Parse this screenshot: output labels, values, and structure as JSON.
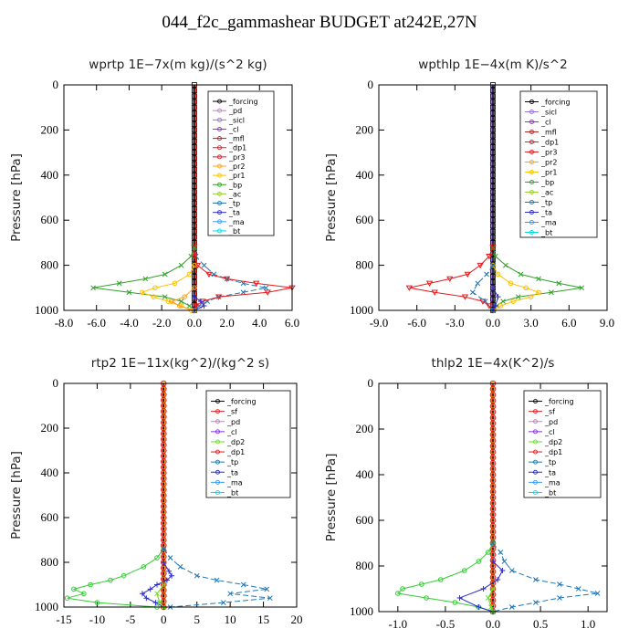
{
  "figure_title": "044_f2c_gammashear  BUDGET at242E,27N",
  "chart_data": [
    {
      "type": "line",
      "title": "wprtp  1E−7x(m kg)/(s^2 kg)",
      "ylabel": "Pressure [hPa]",
      "xlim": [
        -8,
        6
      ],
      "ylim": [
        1000,
        0
      ],
      "xticks": [
        "-8.0",
        "-6.0",
        "-4.0",
        "-2.0",
        "0.0",
        "2.0",
        "4.0",
        "6.0"
      ],
      "xtick_values": [
        -8,
        -6,
        -4,
        -2,
        0,
        2,
        4,
        6
      ],
      "yticks": [
        "0",
        "200",
        "400",
        "600",
        "800",
        "1000"
      ],
      "ytick_values": [
        0,
        200,
        400,
        600,
        800,
        1000
      ],
      "legend": [
        "_forcing",
        "_pd",
        "_sicl",
        "_cl",
        "_mfl",
        "_dp1",
        "_pr3",
        "_pr2",
        "_pr1",
        "_bp",
        "_ac",
        "_tp",
        "_ta",
        "_ma",
        "_bt"
      ],
      "series": [
        {
          "name": "_tp",
          "color": "#1f77b4",
          "marker": "x",
          "dash": "6,3",
          "y": [
            720,
            760,
            800,
            840,
            860,
            880,
            900,
            920,
            940,
            960,
            980,
            1000
          ],
          "x": [
            0,
            0.1,
            0.6,
            1.2,
            2.0,
            3.0,
            4.4,
            3.0,
            1.5,
            0.8,
            0.3,
            0
          ]
        },
        {
          "name": "_pr3",
          "color": "#e41a1c",
          "marker": "tri",
          "dash": "",
          "y": [
            720,
            760,
            800,
            840,
            860,
            880,
            900,
            920,
            940,
            960,
            980,
            1000
          ],
          "x": [
            0,
            0,
            0.2,
            0.9,
            2.0,
            3.8,
            6.0,
            4.5,
            1.5,
            0.5,
            0.1,
            0
          ]
        },
        {
          "name": "_bp",
          "color": "#33a02c",
          "marker": "x",
          "dash": "",
          "y": [
            720,
            760,
            800,
            840,
            860,
            880,
            900,
            920,
            940,
            960,
            980,
            1000
          ],
          "x": [
            0,
            -0.2,
            -0.8,
            -1.8,
            -3.0,
            -4.6,
            -6.2,
            -4.0,
            -1.8,
            -0.8,
            -0.3,
            0
          ]
        },
        {
          "name": "_pr1",
          "color": "#ffc000",
          "marker": "o",
          "dash": "",
          "y": [
            800,
            840,
            880,
            900,
            920,
            940,
            960,
            980,
            1000
          ],
          "x": [
            0,
            -0.3,
            -1.2,
            -2.4,
            -3.2,
            -2.5,
            -1.6,
            -0.8,
            -0.2
          ]
        },
        {
          "name": "_pr2",
          "color": "#ff9f1c",
          "marker": "o",
          "dash": "",
          "y": [
            900,
            940,
            960,
            980,
            1000
          ],
          "x": [
            0,
            -0.6,
            -1.4,
            -0.9,
            0
          ]
        },
        {
          "name": "_ta",
          "color": "#2b2bd1",
          "marker": "+",
          "dash": "",
          "y": [
            940,
            960,
            980,
            1000
          ],
          "x": [
            0,
            0.4,
            0.6,
            0
          ]
        }
      ]
    },
    {
      "type": "line",
      "title": "wpthlp  1E−4x(m K)/s^2",
      "ylabel": "Pressure [hPa]",
      "xlim": [
        -9,
        9
      ],
      "ylim": [
        1000,
        0
      ],
      "xticks": [
        "-9.0",
        "-6.0",
        "-3.0",
        "0.0",
        "3.0",
        "6.0",
        "9.0"
      ],
      "xtick_values": [
        -9,
        -6,
        -3,
        0,
        3,
        6,
        9
      ],
      "yticks": [
        "0",
        "200",
        "400",
        "600",
        "800",
        "1000"
      ],
      "ytick_values": [
        0,
        200,
        400,
        600,
        800,
        1000
      ],
      "legend": [
        "_forcing",
        "_sicl",
        "_cl",
        "_mfl",
        "_dp1",
        "_pr3",
        "_pr2",
        "_pr1",
        "_bp",
        "_ac",
        "_tp",
        "_ta",
        "_ma",
        "_bt"
      ],
      "series": [
        {
          "name": "_bp",
          "color": "#33a02c",
          "marker": "x",
          "dash": "",
          "y": [
            720,
            760,
            800,
            840,
            860,
            880,
            900,
            920,
            940,
            960,
            980,
            1000
          ],
          "x": [
            0,
            0.2,
            1.0,
            2.2,
            3.6,
            5.2,
            7.0,
            4.6,
            2.0,
            0.8,
            0.3,
            0
          ]
        },
        {
          "name": "_pr3",
          "color": "#e41a1c",
          "marker": "tri",
          "dash": "",
          "y": [
            720,
            760,
            800,
            840,
            860,
            880,
            900,
            920,
            940,
            960,
            980,
            1000
          ],
          "x": [
            0,
            -0.3,
            -1.0,
            -2.0,
            -3.4,
            -5.0,
            -6.6,
            -4.6,
            -2.2,
            -0.8,
            -0.3,
            0
          ]
        },
        {
          "name": "_pr1",
          "color": "#ffc000",
          "marker": "o",
          "dash": "",
          "y": [
            800,
            840,
            880,
            900,
            920,
            940,
            960,
            980,
            1000
          ],
          "x": [
            0,
            0.4,
            1.4,
            2.6,
            3.6,
            3.0,
            1.6,
            0.6,
            0.1
          ]
        },
        {
          "name": "_tp",
          "color": "#1f77b4",
          "marker": "x",
          "dash": "6,3",
          "y": [
            800,
            840,
            880,
            920,
            960,
            1000
          ],
          "x": [
            0,
            -0.5,
            -1.2,
            -1.6,
            -0.6,
            0
          ]
        },
        {
          "name": "_ta",
          "color": "#2b2bd1",
          "marker": "+",
          "dash": "",
          "y": [
            900,
            940,
            980,
            1000
          ],
          "x": [
            0,
            0.4,
            0.2,
            0
          ]
        }
      ]
    },
    {
      "type": "line",
      "title": "rtp2  1E−11x(kg^2)/(kg^2 s)",
      "ylabel": "Pressure [hPa]",
      "xlim": [
        -15,
        20
      ],
      "ylim": [
        1000,
        0
      ],
      "xticks": [
        "-15",
        "-10",
        "-5",
        "0",
        "5",
        "10",
        "15",
        "20"
      ],
      "xtick_values": [
        -15,
        -10,
        -5,
        0,
        5,
        10,
        15,
        20
      ],
      "yticks": [
        "0",
        "200",
        "400",
        "600",
        "800",
        "1000"
      ],
      "ytick_values": [
        0,
        200,
        400,
        600,
        800,
        1000
      ],
      "legend": [
        "_forcing",
        "_sf",
        "_pd",
        "_cl",
        "_dp2",
        "_dp1",
        "_tp",
        "_ta",
        "_ma",
        "_bt"
      ],
      "series": [
        {
          "name": "_dp1",
          "color": "#33cc33",
          "marker": "o",
          "dash": "",
          "y": [
            740,
            780,
            820,
            860,
            880,
            900,
            920,
            940,
            960,
            980,
            1000
          ],
          "x": [
            0,
            -1.0,
            -3.0,
            -6.0,
            -8.0,
            -11.0,
            -13.5,
            -12.0,
            -14.5,
            -10.0,
            -1.0
          ]
        },
        {
          "name": "_tp",
          "color": "#1f77b4",
          "marker": "x",
          "dash": "6,3",
          "y": [
            740,
            780,
            820,
            860,
            880,
            900,
            920,
            940,
            960,
            980,
            1000
          ],
          "x": [
            0,
            1.0,
            2.5,
            5.0,
            8.0,
            12.0,
            15.5,
            10.0,
            16.0,
            9.0,
            1.0
          ]
        },
        {
          "name": "_ta",
          "color": "#2b2bd1",
          "marker": "+",
          "dash": "",
          "y": [
            800,
            840,
            860,
            880,
            900,
            920,
            940,
            960,
            980,
            1000
          ],
          "x": [
            0,
            0.8,
            1.2,
            0.5,
            -1.0,
            -2.0,
            -3.2,
            -2.6,
            -1.2,
            0
          ]
        },
        {
          "name": "_dp2",
          "color": "#66dd22",
          "marker": "x",
          "dash": "",
          "y": [
            900,
            940,
            980,
            1000
          ],
          "x": [
            0,
            -1.0,
            -0.6,
            0
          ]
        }
      ]
    },
    {
      "type": "line",
      "title": "thlp2  1E−4x(K^2)/s",
      "ylabel": "Pressure [hPa]",
      "xlim": [
        -1.2,
        1.2
      ],
      "ylim": [
        1000,
        0
      ],
      "xticks": [
        "-1.0",
        "-0.5",
        "0.0",
        "0.5",
        "1.0"
      ],
      "xtick_values": [
        -1.0,
        -0.5,
        0.0,
        0.5,
        1.0
      ],
      "yticks": [
        "0",
        "200",
        "400",
        "600",
        "800",
        "1000"
      ],
      "ytick_values": [
        0,
        200,
        400,
        600,
        800,
        1000
      ],
      "legend": [
        "_forcing",
        "_sf",
        "_pd",
        "_cl",
        "_dp2",
        "_dp1",
        "_tp",
        "_ta",
        "_ma",
        "_bt"
      ],
      "series": [
        {
          "name": "_dp1",
          "color": "#33cc33",
          "marker": "o",
          "dash": "",
          "y": [
            700,
            740,
            780,
            820,
            860,
            880,
            900,
            920,
            940,
            960,
            980,
            1000
          ],
          "x": [
            0,
            -0.05,
            -0.15,
            -0.3,
            -0.55,
            -0.75,
            -0.95,
            -1.0,
            -0.7,
            -0.4,
            -0.15,
            0
          ]
        },
        {
          "name": "_tp",
          "color": "#1f77b4",
          "marker": "x",
          "dash": "6,3",
          "y": [
            700,
            740,
            780,
            820,
            860,
            880,
            900,
            920,
            940,
            960,
            980,
            1000
          ],
          "x": [
            0,
            0.08,
            0.12,
            0.2,
            0.45,
            0.7,
            0.9,
            1.1,
            0.7,
            0.45,
            0.2,
            0
          ]
        },
        {
          "name": "_ta",
          "color": "#2b2bd1",
          "marker": "+",
          "dash": "",
          "y": [
            780,
            820,
            860,
            900,
            940,
            980,
            1000
          ],
          "x": [
            0,
            0.1,
            0.05,
            -0.1,
            -0.35,
            -0.15,
            0
          ]
        },
        {
          "name": "_dp2",
          "color": "#66dd22",
          "marker": "x",
          "dash": "",
          "y": [
            900,
            940,
            980,
            1000
          ],
          "x": [
            0,
            -0.05,
            -0.02,
            0
          ]
        }
      ]
    }
  ]
}
